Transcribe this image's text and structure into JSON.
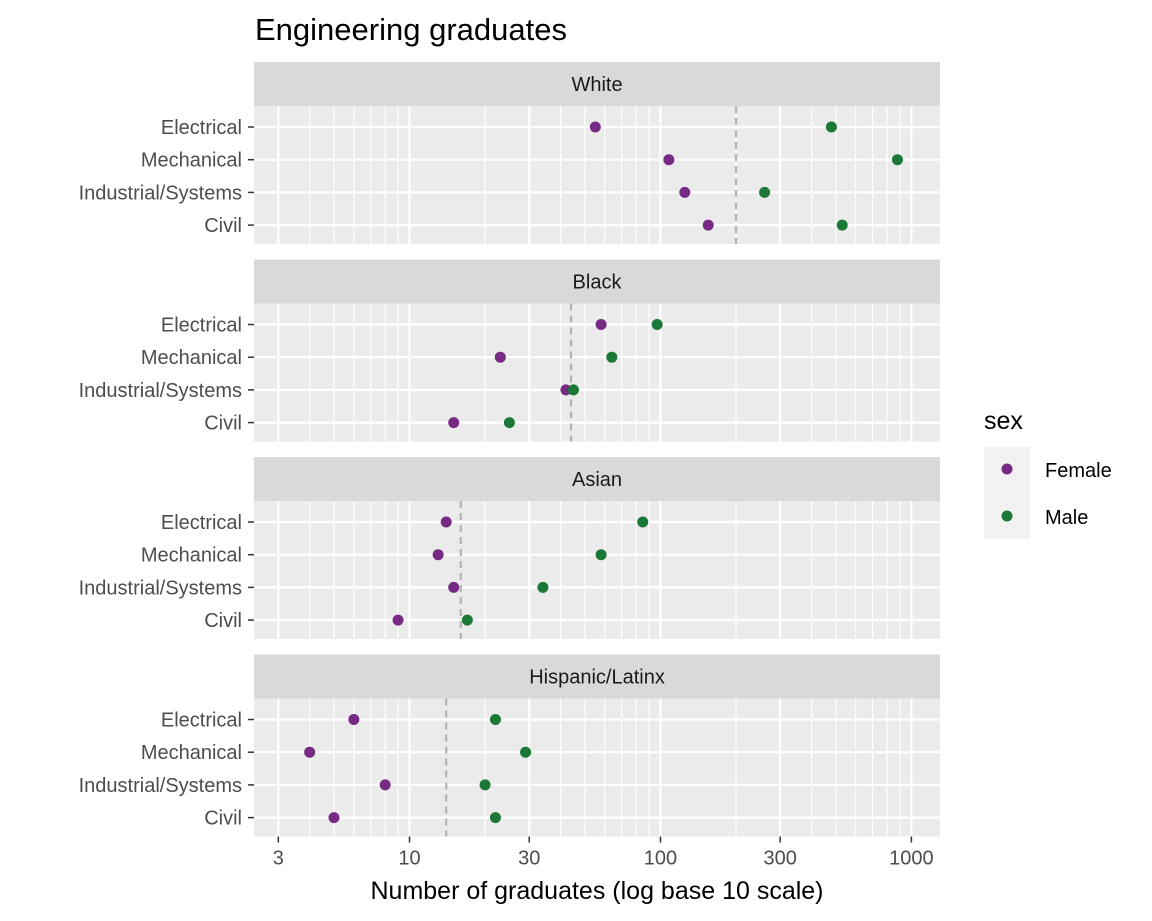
{
  "chart_data": {
    "type": "scatter",
    "title": "Engineering graduates",
    "xlabel": "Number of graduates (log base 10 scale)",
    "ylabel": "",
    "x_scale": "log10",
    "xlim": [
      2.4,
      1300
    ],
    "x_ticks": [
      3,
      10,
      30,
      100,
      300,
      1000
    ],
    "x_tick_labels": [
      "3",
      "10",
      "30",
      "100",
      "300",
      "1000"
    ],
    "categories": [
      "Electrical",
      "Mechanical",
      "Industrial/Systems",
      "Civil"
    ],
    "legend": {
      "title": "sex",
      "position": "right",
      "entries": [
        {
          "name": "Female",
          "color": "#762a83"
        },
        {
          "name": "Male",
          "color": "#1b7837"
        }
      ]
    },
    "reference_line": {
      "style": "dashed",
      "color": "#b3b3b3"
    },
    "grid": true,
    "panels": [
      {
        "name": "White",
        "reference": 200,
        "series": [
          {
            "name": "Female",
            "values": [
              55,
              108,
              125,
              155
            ]
          },
          {
            "name": "Male",
            "values": [
              480,
              880,
              260,
              530
            ]
          }
        ]
      },
      {
        "name": "Black",
        "reference": 44,
        "series": [
          {
            "name": "Female",
            "values": [
              58,
              23,
              42,
              15
            ]
          },
          {
            "name": "Male",
            "values": [
              97,
              64,
              45,
              25
            ]
          }
        ]
      },
      {
        "name": "Asian",
        "reference": 16,
        "series": [
          {
            "name": "Female",
            "values": [
              14,
              13,
              15,
              9
            ]
          },
          {
            "name": "Male",
            "values": [
              85,
              58,
              34,
              17
            ]
          }
        ]
      },
      {
        "name": "Hispanic/Latinx",
        "reference": 14,
        "series": [
          {
            "name": "Female",
            "values": [
              6,
              4,
              8,
              5
            ]
          },
          {
            "name": "Male",
            "values": [
              22,
              29,
              20,
              22
            ]
          }
        ]
      }
    ]
  }
}
